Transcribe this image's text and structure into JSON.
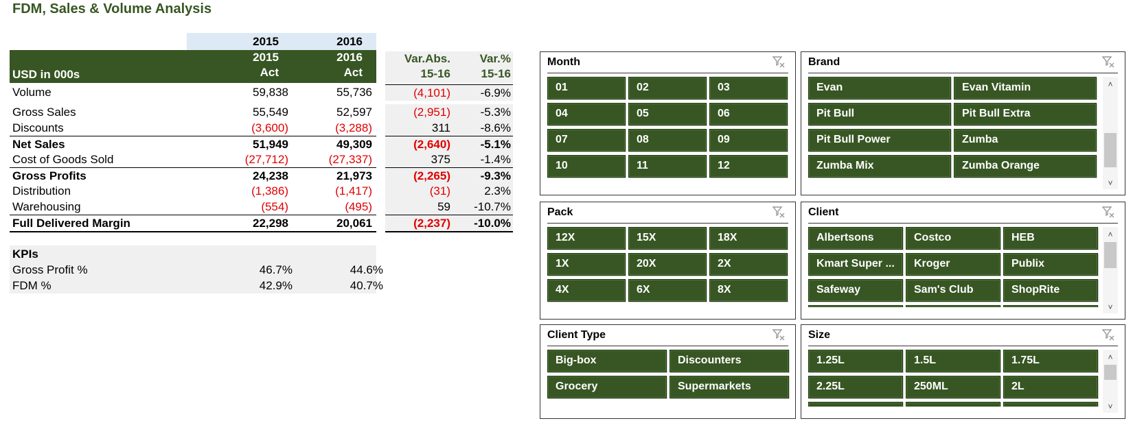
{
  "title": "FDM, Sales & Volume Analysis",
  "table": {
    "year_labels": [
      "2015",
      "2016"
    ],
    "col_top": [
      "2015",
      "2016"
    ],
    "col_bottom": [
      "Act",
      "Act"
    ],
    "unit_label": "USD in 000s",
    "var_abs_top": "Var.Abs.",
    "var_abs_bottom": "15-16",
    "var_pct_top": "Var.%",
    "var_pct_bottom": "15-16",
    "rows": [
      {
        "label": "Volume",
        "v2015": "59,838",
        "v2016": "55,736",
        "var_abs": "(4,101)",
        "var_pct": "-6.9%"
      },
      {
        "label": "Gross Sales",
        "v2015": "55,549",
        "v2016": "52,597",
        "var_abs": "(2,951)",
        "var_pct": "-5.3%"
      },
      {
        "label": "Discounts",
        "v2015": "(3,600)",
        "v2016": "(3,288)",
        "var_abs": "311",
        "var_pct": "-8.6%"
      },
      {
        "label": "Net Sales",
        "v2015": "51,949",
        "v2016": "49,309",
        "var_abs": "(2,640)",
        "var_pct": "-5.1%"
      },
      {
        "label": "Cost of Goods Sold",
        "v2015": "(27,712)",
        "v2016": "(27,337)",
        "var_abs": "375",
        "var_pct": "-1.4%"
      },
      {
        "label": "Gross Profits",
        "v2015": "24,238",
        "v2016": "21,973",
        "var_abs": "(2,265)",
        "var_pct": "-9.3%"
      },
      {
        "label": "Distribution",
        "v2015": "(1,386)",
        "v2016": "(1,417)",
        "var_abs": "(31)",
        "var_pct": "2.3%"
      },
      {
        "label": "Warehousing",
        "v2015": "(554)",
        "v2016": "(495)",
        "var_abs": "59",
        "var_pct": "-10.7%"
      },
      {
        "label": "Full Delivered Margin",
        "v2015": "22,298",
        "v2016": "20,061",
        "var_abs": "(2,237)",
        "var_pct": "-10.0%"
      }
    ]
  },
  "kpis": {
    "title": "KPIs",
    "rows": [
      {
        "label": "Gross Profit %",
        "v2015": "46.7%",
        "v2016": "44.6%"
      },
      {
        "label": "FDM %",
        "v2015": "42.9%",
        "v2016": "40.7%"
      }
    ]
  },
  "slicers": {
    "month": {
      "title": "Month",
      "items": [
        "01",
        "02",
        "03",
        "04",
        "05",
        "06",
        "07",
        "08",
        "09",
        "10",
        "11",
        "12"
      ]
    },
    "brand": {
      "title": "Brand",
      "items": [
        "Evan",
        "Evan Vitamin",
        "Pit Bull",
        "Pit Bull Extra",
        "Pit Bull Power",
        "Zumba",
        "Zumba Mix",
        "Zumba Orange"
      ]
    },
    "pack": {
      "title": "Pack",
      "items": [
        "12X",
        "15X",
        "18X",
        "1X",
        "20X",
        "2X",
        "4X",
        "6X",
        "8X"
      ]
    },
    "client": {
      "title": "Client",
      "items": [
        "Albertsons",
        "Costco",
        "HEB",
        "Kmart Super ...",
        "Kroger",
        "Publix",
        "Safeway",
        "Sam's Club",
        "ShopRite"
      ]
    },
    "client_type": {
      "title": "Client Type",
      "items": [
        "Big-box",
        "Discounters",
        "Grocery",
        "Supermarkets"
      ]
    },
    "size": {
      "title": "Size",
      "items": [
        "1.25L",
        "1.5L",
        "1.75L",
        "2.25L",
        "250ML",
        "2L"
      ]
    }
  },
  "colors": {
    "accent": "#375623",
    "negative": "#e00000",
    "header_blue": "#dde9f4",
    "var_bg": "#f0f0f0"
  }
}
